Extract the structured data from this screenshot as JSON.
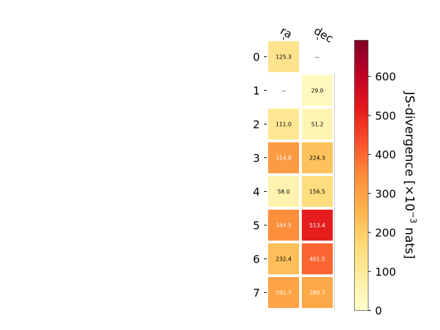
{
  "chart_data": {
    "type": "heatmap",
    "x_categories": [
      "ra",
      "dec"
    ],
    "y_categories": [
      "0",
      "1",
      "2",
      "3",
      "4",
      "5",
      "6",
      "7"
    ],
    "values": [
      [
        125.3,
        null
      ],
      [
        null,
        29.0
      ],
      [
        111.0,
        51.2
      ],
      [
        314.8,
        224.3
      ],
      [
        58.0,
        156.5
      ],
      [
        344.5,
        513.4
      ],
      [
        232.4,
        401.5
      ],
      [
        291.7,
        280.7
      ]
    ],
    "labels": [
      [
        "125.3",
        "--"
      ],
      [
        "--",
        "29.0"
      ],
      [
        "111.0",
        "51.2"
      ],
      [
        "314.8",
        "224.3"
      ],
      [
        "58.0",
        "156.5"
      ],
      [
        "344.5",
        "513.4"
      ],
      [
        "232.4",
        "401.5"
      ],
      [
        "291.7",
        "280.7"
      ]
    ],
    "colorbar": {
      "label_main": "JS-divergence [×10",
      "label_exp": "−3",
      "label_unit": " nats]",
      "range": [
        0,
        693
      ],
      "ticks": [
        0,
        100,
        200,
        300,
        400,
        500,
        600
      ],
      "tick_labels": [
        "0",
        "100",
        "200",
        "300",
        "400",
        "500",
        "600"
      ],
      "colormap": "YlOrRd"
    },
    "grid": false
  }
}
